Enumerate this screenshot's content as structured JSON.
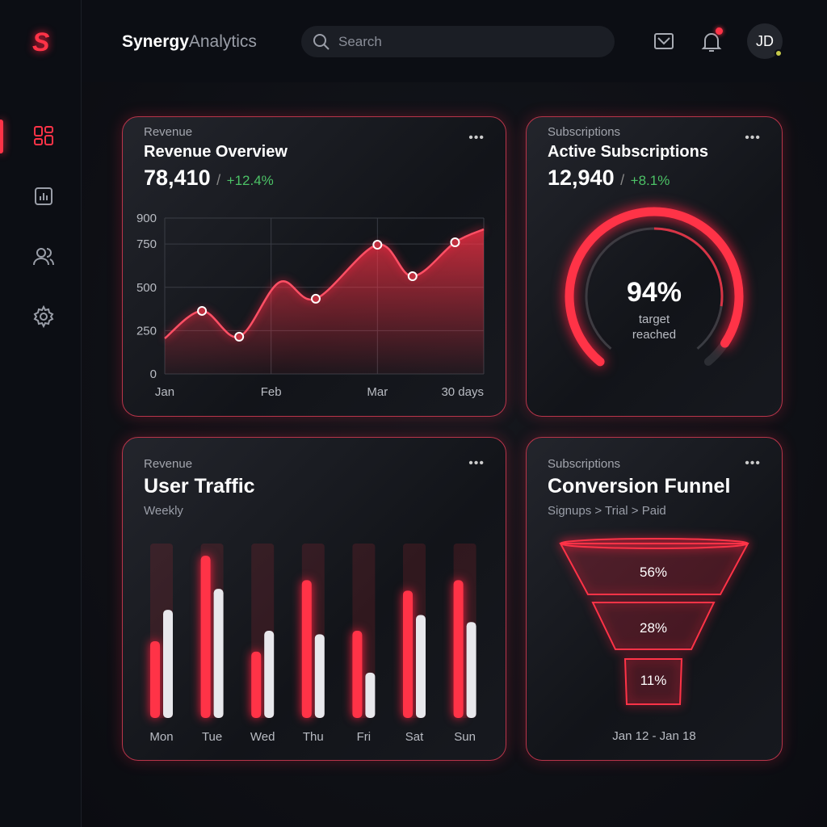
{
  "app": {
    "brand_primary": "Synergy",
    "brand_secondary": "Analytics",
    "logo_letter": "S",
    "accent": "#ff3347",
    "positive": "#4cc266"
  },
  "sidebar": {
    "items": [
      {
        "name": "dashboard",
        "icon": "dashboard-grid-icon",
        "active": true
      },
      {
        "name": "reports",
        "icon": "bar-chart-icon"
      },
      {
        "name": "users",
        "icon": "users-icon"
      },
      {
        "name": "settings",
        "icon": "gear-icon"
      }
    ]
  },
  "header": {
    "search_placeholder": "Search",
    "avatar_initials": "JD",
    "notification_unread": true
  },
  "revenue": {
    "kicker": "Revenue",
    "title": "Revenue Overview",
    "value": "78,410",
    "separator": "/",
    "change": "+12.4%"
  },
  "subscriptions": {
    "kicker": "Subscriptions",
    "title": "Active Subscriptions",
    "value": "12,940",
    "separator": "/",
    "change": "+8.1%",
    "gauge_percent": 94,
    "gauge_label": "94%",
    "gauge_caption_1": "target",
    "gauge_caption_2": "reached"
  },
  "traffic": {
    "kicker": "Revenue",
    "title": "User Traffic",
    "subtitle": "Weekly"
  },
  "funnel": {
    "kicker": "Subscriptions",
    "title": "Conversion Funnel",
    "subtitle": "Signups > Trial > Paid",
    "stages": [
      "56%",
      "28%",
      "11%"
    ],
    "date_range": "Jan 12 - Jan 18"
  },
  "chart_data": [
    {
      "type": "area",
      "ylim": [
        0,
        900
      ],
      "yticks": [
        "0",
        "250",
        "500",
        "750",
        "900"
      ],
      "xticks": [
        "Jan",
        "Feb",
        "Mar",
        "30 days"
      ],
      "grid": true,
      "curve": [
        [
          0,
          205
        ],
        [
          0.35,
          364
        ],
        [
          0.7,
          215
        ],
        [
          1.08,
          530
        ],
        [
          1.42,
          434
        ],
        [
          2.0,
          746
        ],
        [
          2.33,
          564
        ],
        [
          2.73,
          760
        ],
        [
          3.0,
          835
        ]
      ],
      "markers": [
        [
          0.35,
          364
        ],
        [
          0.7,
          215
        ],
        [
          1.42,
          434
        ],
        [
          2.0,
          746
        ],
        [
          2.33,
          564
        ],
        [
          2.73,
          760
        ]
      ]
    },
    {
      "type": "bar",
      "categories": [
        "Mon",
        "Tue",
        "Wed",
        "Thu",
        "Fri",
        "Sat",
        "Sun"
      ],
      "series": [
        {
          "color": "#ff3347",
          "values": [
            0.44,
            0.93,
            0.38,
            0.79,
            0.5,
            0.73,
            0.79
          ]
        },
        {
          "color": "#e8e8ec",
          "values": [
            0.62,
            0.74,
            0.5,
            0.48,
            0.26,
            0.59,
            0.55
          ]
        }
      ]
    }
  ]
}
